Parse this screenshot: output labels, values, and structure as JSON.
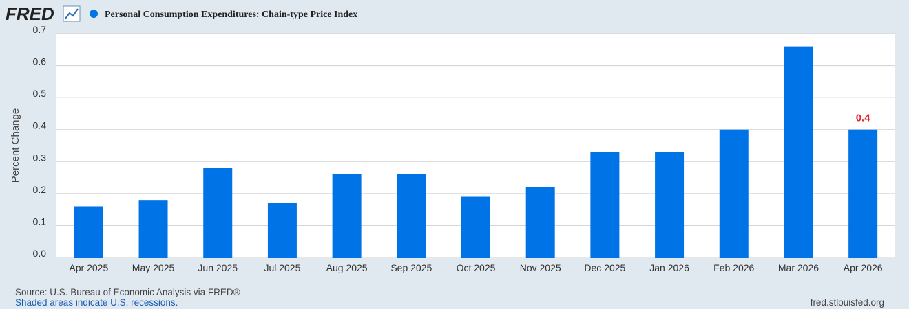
{
  "header": {
    "logo": "FRED"
  },
  "chart_data": {
    "type": "bar",
    "title": "Personal Consumption Expenditures: Chain-type Price Index",
    "y_label": "Percent Change",
    "categories": [
      "Apr 2025",
      "May 2025",
      "Jun 2025",
      "Jul 2025",
      "Aug 2025",
      "Sep 2025",
      "Oct 2025",
      "Nov 2025",
      "Dec 2025",
      "Jan 2026",
      "Feb 2026",
      "Mar 2026",
      "Apr 2026"
    ],
    "values": [
      0.16,
      0.18,
      0.28,
      0.17,
      0.26,
      0.26,
      0.19,
      0.22,
      0.33,
      0.33,
      0.4,
      0.66,
      0.4
    ],
    "color": "#0073e6",
    "ylim": [
      0,
      0.7
    ],
    "yticks": [
      {
        "value": 0,
        "label": "0.0"
      },
      0.1,
      0.2,
      0.3,
      0.4,
      0.5,
      0.6,
      0.7
    ],
    "grid": true,
    "label_last": true,
    "label_color": "#e8202c"
  },
  "footer": {
    "source": "Source: U.S. Bureau of Economic Analysis via FRED®",
    "note": "Shaded areas indicate U.S. recessions.",
    "site": "fred.stlouisfed.org"
  }
}
